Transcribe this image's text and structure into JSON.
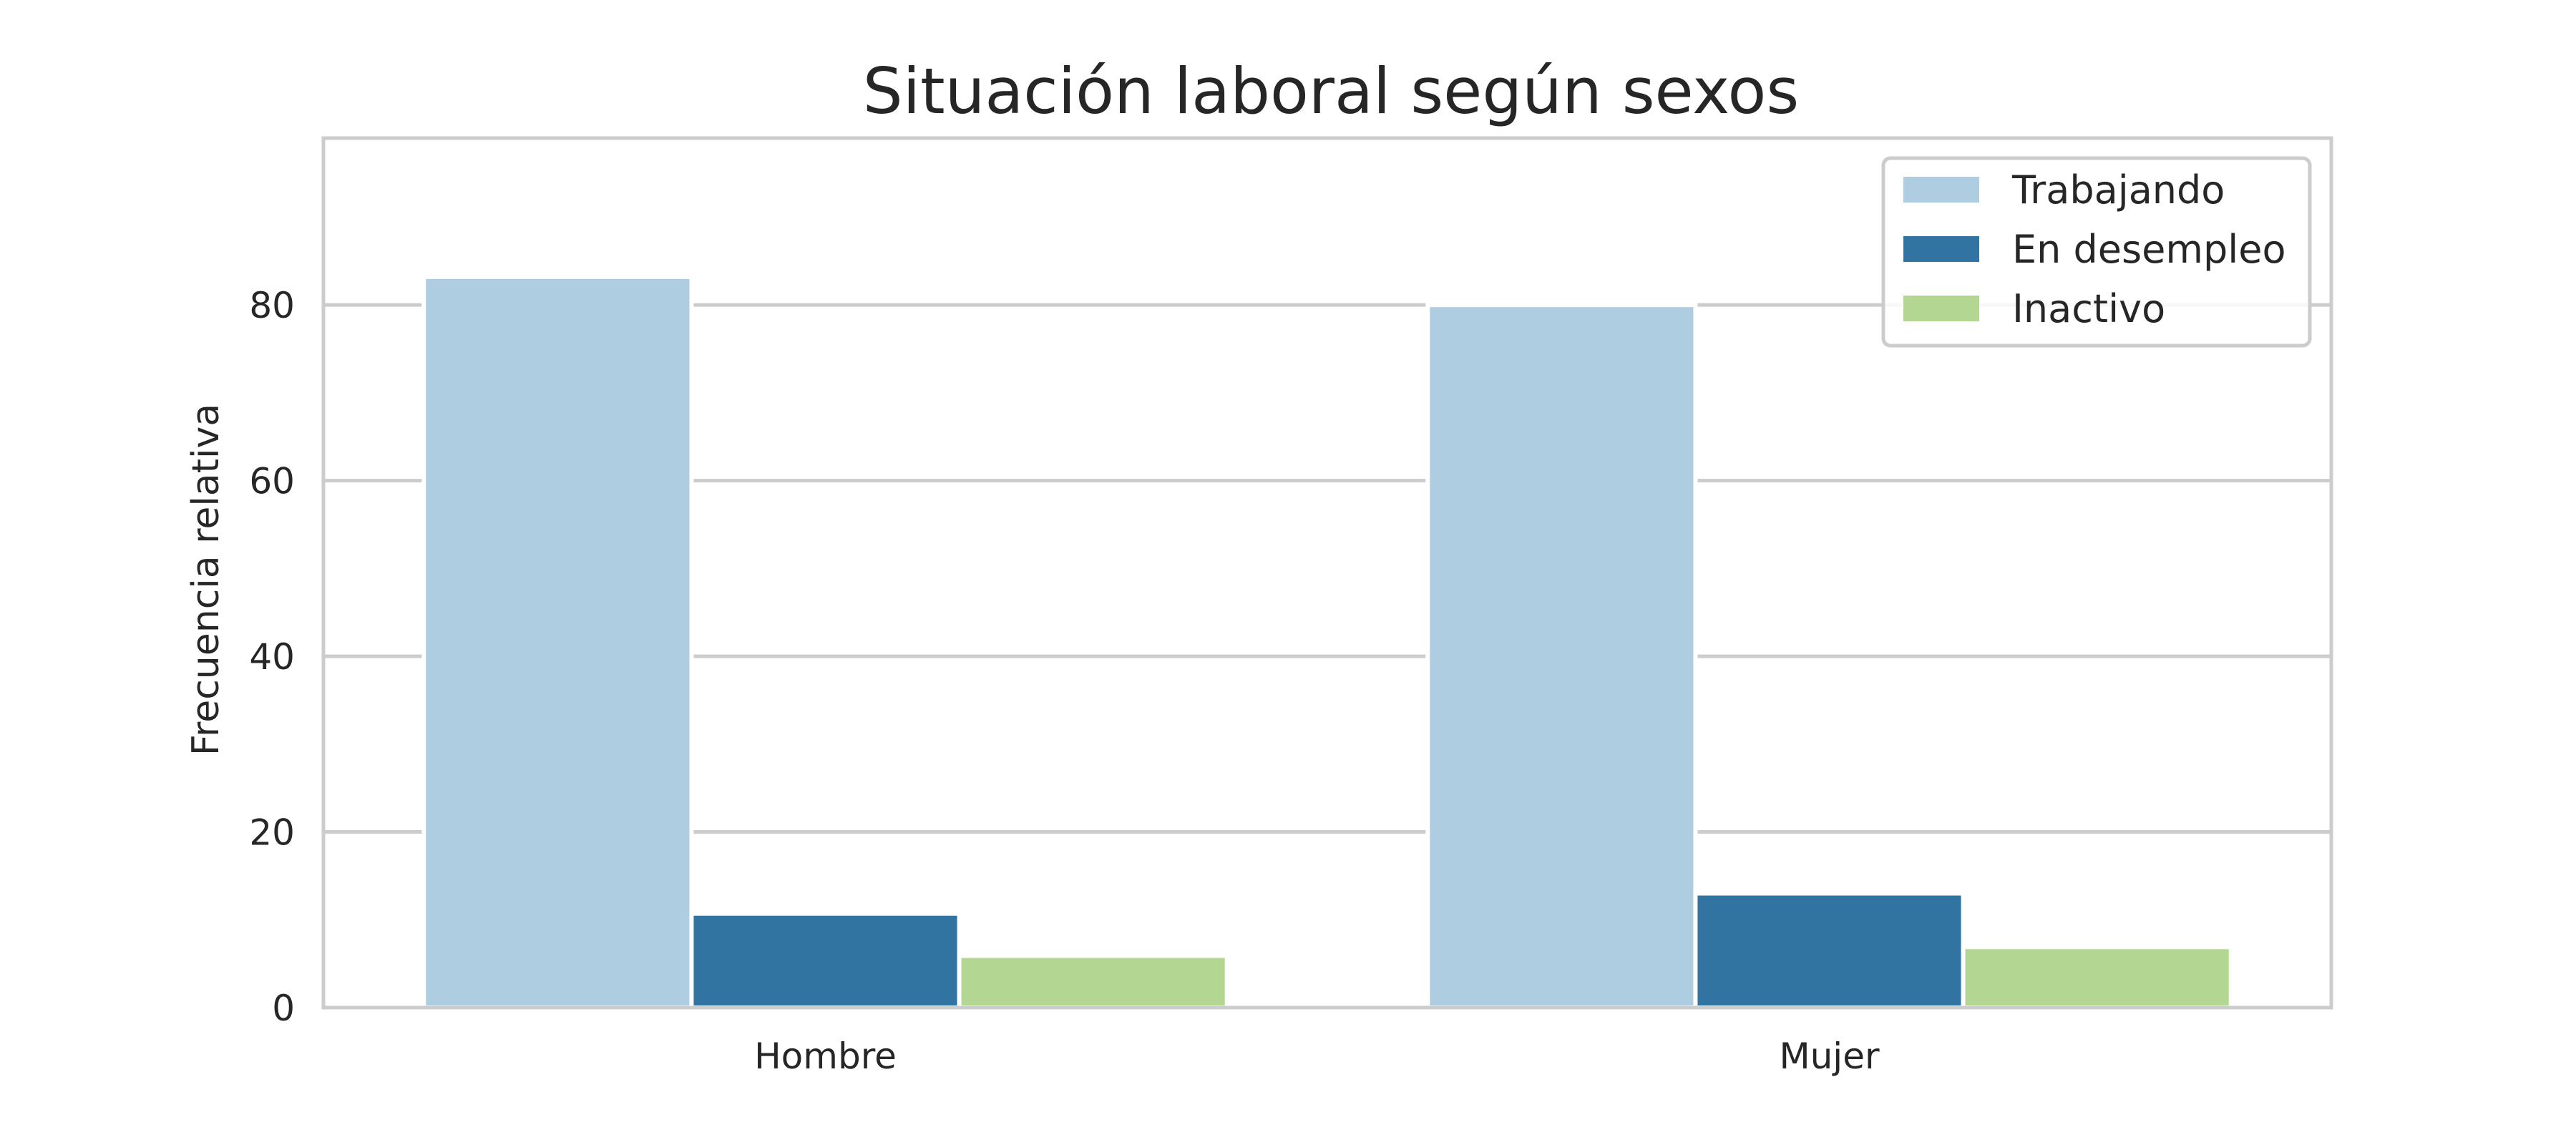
{
  "chart_data": {
    "type": "bar",
    "title": "Situación laboral según sexos",
    "xlabel": "",
    "ylabel": "Frecuencia relativa",
    "categories": [
      "Hombre",
      "Mujer"
    ],
    "ylim": [
      0,
      99
    ],
    "yticks": [
      0,
      20,
      40,
      60,
      80
    ],
    "grid": true,
    "legend_position": "top-right",
    "series": [
      {
        "name": "Trabajando",
        "color": "#afcde0",
        "values": [
          83.2,
          80.0
        ]
      },
      {
        "name": "En desempleo",
        "color": "#3274a1",
        "values": [
          10.7,
          13.0
        ]
      },
      {
        "name": "Inactivo",
        "color": "#b3d692",
        "values": [
          5.9,
          6.9
        ]
      }
    ]
  }
}
